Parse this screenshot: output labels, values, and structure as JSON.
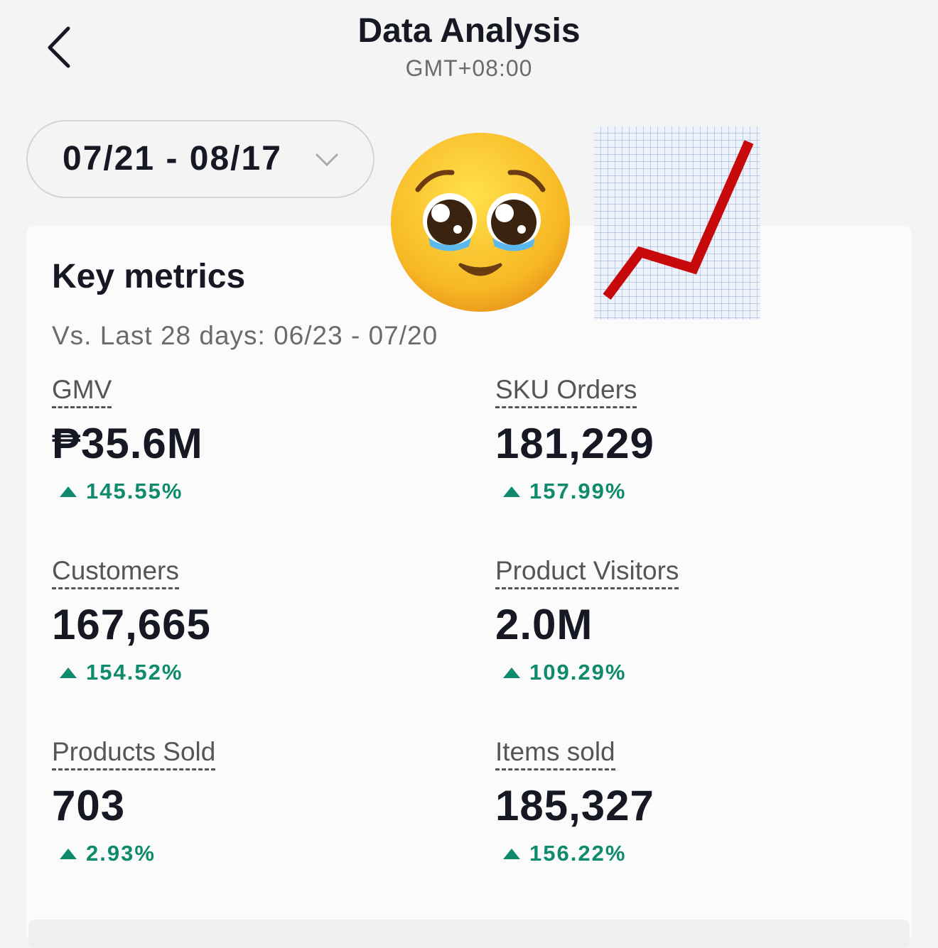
{
  "header": {
    "title": "Data Analysis",
    "subtitle": "GMT+08:00"
  },
  "date_range": "07/21 - 08/17",
  "card": {
    "title": "Key metrics",
    "comparison": "Vs. Last 28 days: 06/23 - 07/20",
    "metrics": [
      {
        "label": "GMV",
        "value": "₱35.6M",
        "change": "145.55%"
      },
      {
        "label": "SKU Orders",
        "value": "181,229",
        "change": "157.99%"
      },
      {
        "label": "Customers",
        "value": "167,665",
        "change": "154.52%"
      },
      {
        "label": "Product Visitors",
        "value": "2.0M",
        "change": "109.29%"
      },
      {
        "label": "Products Sold",
        "value": "703",
        "change": "2.93%"
      },
      {
        "label": "Items sold",
        "value": "185,327",
        "change": "156.22%"
      }
    ]
  }
}
